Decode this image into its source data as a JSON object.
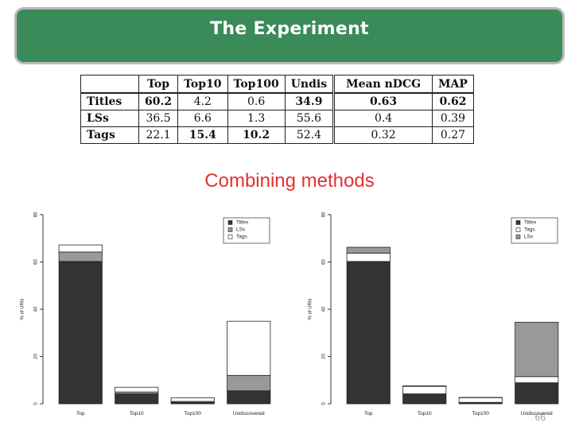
{
  "slide": {
    "title": "The Experiment",
    "subtitle": "Combining methods",
    "page_number": "66"
  },
  "table": {
    "headers": [
      "",
      "Top",
      "Top10",
      "Top100",
      "Undis",
      "Mean nDCG",
      "MAP"
    ],
    "rows": [
      {
        "label": "Titles",
        "cells": [
          "60.2",
          "4.2",
          "0.6",
          "34.9",
          "0.63",
          "0.62"
        ],
        "bold": [
          true,
          false,
          false,
          true,
          true,
          true
        ]
      },
      {
        "label": "LSs",
        "cells": [
          "36.5",
          "6.6",
          "1.3",
          "55.6",
          "0.4",
          "0.39"
        ],
        "bold": [
          false,
          false,
          false,
          false,
          false,
          false
        ]
      },
      {
        "label": "Tags",
        "cells": [
          "22.1",
          "15.4",
          "10.2",
          "52.4",
          "0.32",
          "0.27"
        ],
        "bold": [
          false,
          true,
          true,
          false,
          false,
          false
        ]
      }
    ]
  },
  "chart_data": [
    {
      "type": "bar",
      "stacked": true,
      "ylabel": "% of URIs",
      "ylim": [
        0,
        80
      ],
      "yticks": [
        0,
        20,
        40,
        60,
        80
      ],
      "categories": [
        "Top",
        "Top10",
        "Top100",
        "Undiscovered"
      ],
      "legend_position": "top-right",
      "series": [
        {
          "name": "Titles",
          "color": "#333333",
          "values": [
            60.2,
            4.2,
            0.6,
            5.5
          ]
        },
        {
          "name": "LSs",
          "color": "#999999",
          "values": [
            4.0,
            0.8,
            0.4,
            6.5
          ]
        },
        {
          "name": "Tags",
          "color": "#ffffff",
          "values": [
            3.0,
            2.0,
            1.5,
            22.9
          ]
        }
      ]
    },
    {
      "type": "bar",
      "stacked": true,
      "ylabel": "% of URIs",
      "ylim": [
        0,
        80
      ],
      "yticks": [
        0,
        20,
        40,
        60,
        80
      ],
      "categories": [
        "Top",
        "Top10",
        "Top100",
        "Undiscovered"
      ],
      "legend_position": "top-right",
      "series": [
        {
          "name": "Titles",
          "color": "#333333",
          "values": [
            60.2,
            4.2,
            0.6,
            8.9
          ]
        },
        {
          "name": "Tags",
          "color": "#ffffff",
          "values": [
            3.5,
            3.2,
            2.0,
            2.6
          ]
        },
        {
          "name": "LSs",
          "color": "#999999",
          "values": [
            2.5,
            0.2,
            0.1,
            23.0
          ]
        }
      ]
    }
  ]
}
